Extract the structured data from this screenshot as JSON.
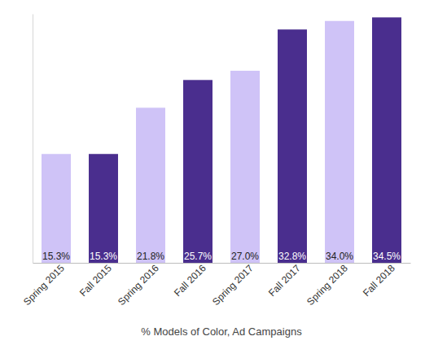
{
  "chart_data": {
    "type": "bar",
    "x_label": "% Models of Color, Ad Campaigns",
    "categories": [
      "Spring 2015",
      "Fall 2015",
      "Spring 2016",
      "Fall 2016",
      "Spring 2017",
      "Fall 2017",
      "Spring 2018",
      "Fall 2018"
    ],
    "values": [
      15.3,
      15.3,
      21.8,
      25.7,
      27.0,
      32.8,
      34.0,
      34.5
    ],
    "value_labels": [
      "15.3%",
      "15.3%",
      "21.8%",
      "25.7%",
      "27.0%",
      "32.8%",
      "34.0%",
      "34.5%"
    ],
    "colors": [
      "#cfc3f7",
      "#4a2e8e",
      "#cfc3f7",
      "#4a2e8e",
      "#cfc3f7",
      "#4a2e8e",
      "#cfc3f7",
      "#4a2e8e"
    ],
    "ylim": [
      0,
      35
    ],
    "yticks": [],
    "grid": false,
    "data_labels": true,
    "tick_labels": "x"
  }
}
